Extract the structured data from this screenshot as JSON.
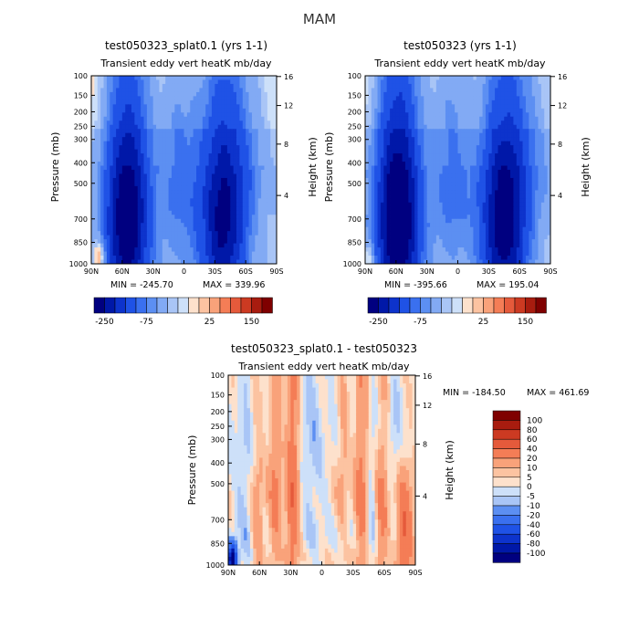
{
  "figure_title": "MAM",
  "colors": {
    "neg": [
      "#000080",
      "#0018a8",
      "#0d33cc",
      "#1f52e6",
      "#3a70ef",
      "#5c8ff2",
      "#82aaf4",
      "#a9c5f6",
      "#cde0f9"
    ],
    "pos": [
      "#fde1cc",
      "#fcc3a1",
      "#f9a27a",
      "#f47d56",
      "#e55a3b",
      "#cc3a22",
      "#a81c0f",
      "#7f0000"
    ]
  },
  "chart_data": [
    {
      "type": "heatmap",
      "id": "panel_a",
      "title": "test050323_splat0.1 (yrs 1-1)",
      "subtitle": "Transient eddy vert heatK mb/day",
      "x_ticks": [
        "90N",
        "60N",
        "30N",
        "0",
        "30S",
        "60S",
        "90S"
      ],
      "y_ticks": [
        "100",
        "150",
        "200",
        "250",
        "300",
        "400",
        "500",
        "700",
        "850",
        "1000"
      ],
      "ylabel": "Pressure (mb)",
      "y2label": "Height (km)",
      "y2_ticks": [
        "16",
        "12",
        "8",
        "4"
      ],
      "min_text": "MIN = -245.70",
      "max_text": "MAX = 339.96",
      "colorbar_labels": [
        "-250",
        "-75",
        "25",
        "150"
      ],
      "blobs": [
        {
          "lat": -38,
          "p": 720,
          "w": 22,
          "h": 620,
          "amp": -250
        },
        {
          "lat": 55,
          "p": 700,
          "w": 21,
          "h": 640,
          "amp": -300
        },
        {
          "lat": 4,
          "p": 480,
          "w": 20,
          "h": 500,
          "amp": -70
        },
        {
          "lat": -60,
          "p": 320,
          "w": 30,
          "h": 380,
          "amp": -40
        },
        {
          "lat": 82,
          "p": 950,
          "w": 6,
          "h": 120,
          "amp": 80
        },
        {
          "lat": 20,
          "p": 180,
          "w": 50,
          "h": 200,
          "amp": -10
        }
      ]
    },
    {
      "type": "heatmap",
      "id": "panel_b",
      "title": "test050323 (yrs 1-1)",
      "subtitle": "Transient eddy vert heatK mb/day",
      "x_ticks": [
        "90N",
        "60N",
        "30N",
        "0",
        "30S",
        "60S",
        "90S"
      ],
      "y_ticks": [
        "100",
        "150",
        "200",
        "250",
        "300",
        "400",
        "500",
        "700",
        "850",
        "1000"
      ],
      "ylabel": "Pressure (mb)",
      "y2label": "Height (km)",
      "y2_ticks": [
        "16",
        "12",
        "8",
        "4"
      ],
      "min_text": "MIN = -395.66",
      "max_text": "MAX = 195.04",
      "colorbar_labels": [
        "-250",
        "-75",
        "25",
        "150"
      ],
      "blobs": [
        {
          "lat": -45,
          "p": 720,
          "w": 22,
          "h": 620,
          "amp": -280
        },
        {
          "lat": 58,
          "p": 700,
          "w": 21,
          "h": 640,
          "amp": -330
        },
        {
          "lat": 5,
          "p": 480,
          "w": 20,
          "h": 500,
          "amp": -75
        },
        {
          "lat": -70,
          "p": 330,
          "w": 28,
          "h": 380,
          "amp": -45
        },
        {
          "lat": 86,
          "p": 960,
          "w": 5,
          "h": 120,
          "amp": 60
        },
        {
          "lat": 20,
          "p": 180,
          "w": 50,
          "h": 200,
          "amp": -10
        }
      ]
    },
    {
      "type": "heatmap",
      "id": "panel_c",
      "title": "test050323_splat0.1 - test050323",
      "subtitle": "Transient eddy vert heatK mb/day",
      "x_ticks": [
        "90N",
        "60N",
        "30N",
        "0",
        "30S",
        "60S",
        "90S"
      ],
      "y_ticks": [
        "100",
        "150",
        "200",
        "250",
        "300",
        "400",
        "500",
        "700",
        "850",
        "1000"
      ],
      "ylabel": "Pressure (mb)",
      "y2label": "Height (km)",
      "y2_ticks": [
        "16",
        "12",
        "8",
        "4"
      ],
      "min_text": "MIN = -184.50",
      "max_text": "MAX = 461.69",
      "colorbar_labels": [
        "100",
        "80",
        "60",
        "40",
        "20",
        "10",
        "5",
        "0",
        "-5",
        "-10",
        "-20",
        "-40",
        "-60",
        "-80",
        "-100"
      ],
      "blobs": [
        {
          "lat": -80,
          "p": 800,
          "w": 7,
          "h": 350,
          "amp": 40
        },
        {
          "lat": -58,
          "p": 650,
          "w": 6,
          "h": 500,
          "amp": 22
        },
        {
          "lat": -38,
          "p": 520,
          "w": 6,
          "h": 600,
          "amp": 25
        },
        {
          "lat": -20,
          "p": 400,
          "w": 6,
          "h": 350,
          "amp": 12
        },
        {
          "lat": 28,
          "p": 550,
          "w": 6,
          "h": 600,
          "amp": 35
        },
        {
          "lat": 45,
          "p": 500,
          "w": 6,
          "h": 600,
          "amp": 22
        },
        {
          "lat": 62,
          "p": 700,
          "w": 6,
          "h": 500,
          "amp": 15
        },
        {
          "lat": -48,
          "p": 650,
          "w": 5,
          "h": 500,
          "amp": -8
        },
        {
          "lat": 10,
          "p": 450,
          "w": 12,
          "h": 600,
          "amp": -7
        },
        {
          "lat": 75,
          "p": 600,
          "w": 8,
          "h": 500,
          "amp": -8
        },
        {
          "lat": -70,
          "p": 280,
          "w": 6,
          "h": 250,
          "amp": -6
        },
        {
          "lat": 86,
          "p": 960,
          "w": 4,
          "h": 100,
          "amp": -120
        },
        {
          "lat": 0,
          "p": 930,
          "w": 40,
          "h": 80,
          "amp": 4
        }
      ]
    }
  ]
}
